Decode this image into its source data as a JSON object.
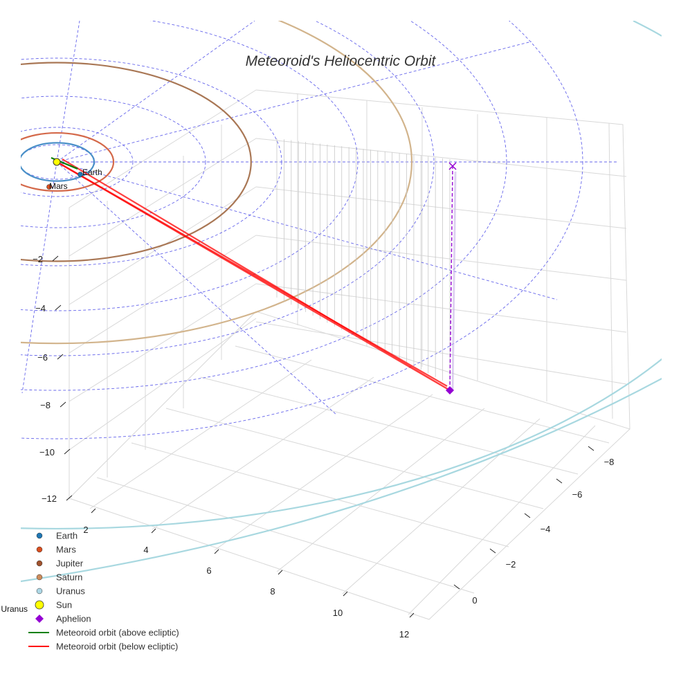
{
  "chart_data": {
    "type": "scatter3d",
    "title": "Meteoroid's Heliocentric Orbit",
    "z_ticks": [
      "−2",
      "−4",
      "−6",
      "−8",
      "−10",
      "−12"
    ],
    "x_ticks": [
      "2",
      "4",
      "6",
      "8",
      "10",
      "12"
    ],
    "y_ticks": [
      "0",
      "−2",
      "−4",
      "−6",
      "−8"
    ],
    "grid": true,
    "planets": [
      {
        "name": "Earth",
        "color": "#1f77b4",
        "orbit_color": "#4a90c8",
        "semi_major_au": 1.0
      },
      {
        "name": "Mars",
        "color": "#d94e1f",
        "orbit_color": "#d4694a",
        "semi_major_au": 1.52
      },
      {
        "name": "Jupiter",
        "color": "#a0522d",
        "orbit_color": "#a97755",
        "semi_major_au": 5.2
      },
      {
        "name": "Saturn",
        "color": "#cd8c5c",
        "orbit_color": "#d2b48c",
        "semi_major_au": 9.5
      },
      {
        "name": "Uranus",
        "color": "#add8e6",
        "orbit_color": "#a8d8e0",
        "semi_major_au": 19.2
      }
    ],
    "point_labels": [
      {
        "name": "Earth",
        "text": "Earth"
      },
      {
        "name": "Mars",
        "text": "Mars"
      },
      {
        "name": "Uranus",
        "text": "Uranus"
      }
    ],
    "sun": {
      "name": "Sun",
      "color": "#ffff00"
    },
    "aphelion": {
      "name": "Aphelion",
      "color": "#9400d3"
    },
    "meteoroid_orbit": {
      "above_ecliptic": {
        "name": "Meteoroid orbit (above ecliptic)",
        "color": "#008000"
      },
      "below_ecliptic": {
        "name": "Meteoroid orbit (below ecliptic)",
        "color": "#ff0000"
      }
    },
    "legend": [
      {
        "label": "Earth",
        "kind": "dot",
        "color": "#1f77b4"
      },
      {
        "label": "Mars",
        "kind": "dot",
        "color": "#d94e1f"
      },
      {
        "label": "Jupiter",
        "kind": "dot",
        "color": "#a0522d"
      },
      {
        "label": "Saturn",
        "kind": "dot",
        "color": "#cd8c5c"
      },
      {
        "label": "Uranus",
        "kind": "dot",
        "color": "#add8e6"
      },
      {
        "label": "Sun",
        "kind": "bigdot",
        "color": "#ffff00"
      },
      {
        "label": "Aphelion",
        "kind": "diamond",
        "color": "#9400d3"
      },
      {
        "label": "Meteoroid orbit (above ecliptic)",
        "kind": "line",
        "color": "#008000"
      },
      {
        "label": "Meteoroid orbit (below ecliptic)",
        "kind": "line",
        "color": "#ff0000"
      }
    ],
    "legend_position": "bottom-left"
  }
}
